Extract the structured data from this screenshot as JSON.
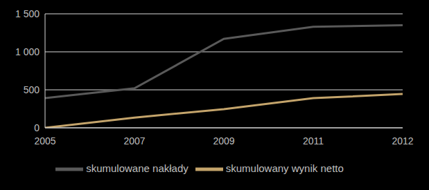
{
  "chart_data": {
    "type": "line",
    "categories": [
      "2005",
      "2007",
      "2009",
      "2011",
      "2012"
    ],
    "series": [
      {
        "name": "skumulowane nakłady",
        "color": "#595959",
        "values": [
          390,
          520,
          1170,
          1330,
          1350
        ]
      },
      {
        "name": "skumulowany wynik netto",
        "color": "#c4a46b",
        "values": [
          0,
          135,
          245,
          390,
          445
        ]
      }
    ],
    "ylim": [
      0,
      1500
    ],
    "yticks": [
      0,
      500,
      {
        "value": 1000,
        "label": "1 000"
      },
      {
        "value": 1500,
        "label": "1 500"
      }
    ],
    "grid": true,
    "legend": "bottom"
  }
}
